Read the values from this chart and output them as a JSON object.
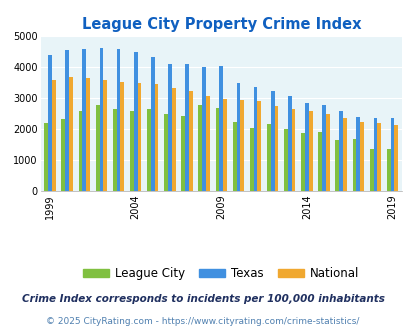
{
  "title": "League City Property Crime Index",
  "years": [
    1999,
    2000,
    2001,
    2002,
    2003,
    2004,
    2005,
    2006,
    2007,
    2008,
    2009,
    2010,
    2011,
    2012,
    2013,
    2014,
    2015,
    2016,
    2017,
    2018,
    2019,
    2020
  ],
  "league_city": [
    2200,
    2350,
    2600,
    2800,
    2650,
    2600,
    2650,
    2500,
    2440,
    2800,
    2700,
    2250,
    2050,
    2180,
    2000,
    1870,
    1900,
    1650,
    1680,
    1380,
    1360,
    null
  ],
  "texas": [
    4400,
    4550,
    4600,
    4620,
    4600,
    4500,
    4320,
    4100,
    4110,
    4020,
    4050,
    3480,
    3380,
    3250,
    3060,
    2850,
    2780,
    2600,
    2400,
    2380,
    2370,
    null
  ],
  "national": [
    3600,
    3680,
    3650,
    3590,
    3520,
    3490,
    3470,
    3330,
    3250,
    3060,
    2970,
    2940,
    2900,
    2760,
    2650,
    2600,
    2490,
    2360,
    2250,
    2200,
    2130,
    null
  ],
  "bar_colors": {
    "league_city": "#80c040",
    "texas": "#4090e0",
    "national": "#f0a830"
  },
  "ylim": [
    0,
    5000
  ],
  "yticks": [
    0,
    1000,
    2000,
    3000,
    4000,
    5000
  ],
  "background_color": "#e8f4f8",
  "legend_labels": [
    "League City",
    "Texas",
    "National"
  ],
  "subtitle": "Crime Index corresponds to incidents per 100,000 inhabitants",
  "footer": "© 2025 CityRating.com - https://www.cityrating.com/crime-statistics/",
  "title_color": "#1060c0",
  "subtitle_color": "#203060",
  "footer_color": "#5080b0",
  "label_years": [
    1999,
    2004,
    2009,
    2014,
    2019
  ]
}
